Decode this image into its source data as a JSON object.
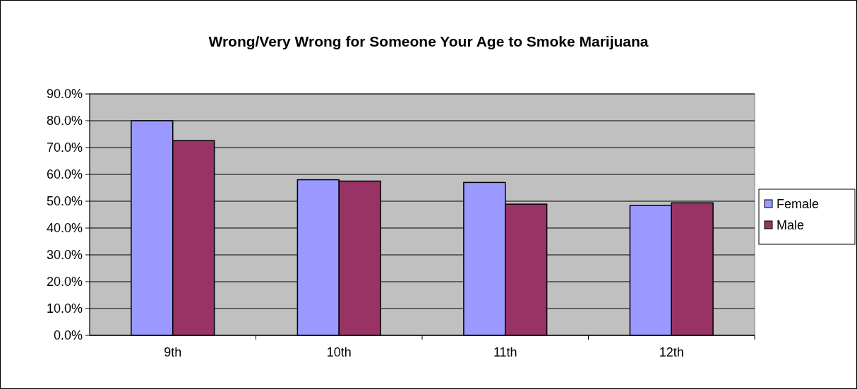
{
  "chart_data": {
    "type": "bar",
    "title": "Wrong/Very Wrong for Someone Your Age to Smoke Marijuana",
    "categories": [
      "9th",
      "10th",
      "11th",
      "12th"
    ],
    "series": [
      {
        "name": "Female",
        "color": "#9999ff",
        "values": [
          80.0,
          58.0,
          57.0,
          48.4
        ]
      },
      {
        "name": "Male",
        "color": "#993366",
        "values": [
          72.6,
          57.5,
          48.9,
          49.4
        ]
      }
    ],
    "ylim": [
      0,
      90
    ],
    "yticks": [
      {
        "value": 0,
        "label": "0.0%"
      },
      {
        "value": 10,
        "label": "10.0%"
      },
      {
        "value": 20,
        "label": "20.0%"
      },
      {
        "value": 30,
        "label": "30.0%"
      },
      {
        "value": 40,
        "label": "40.0%"
      },
      {
        "value": 50,
        "label": "50.0%"
      },
      {
        "value": 60,
        "label": "60.0%"
      },
      {
        "value": 70,
        "label": "70.0%"
      },
      {
        "value": 80,
        "label": "80.0%"
      },
      {
        "value": 90,
        "label": "90.0%"
      }
    ],
    "grid": "y",
    "legend": "right"
  }
}
